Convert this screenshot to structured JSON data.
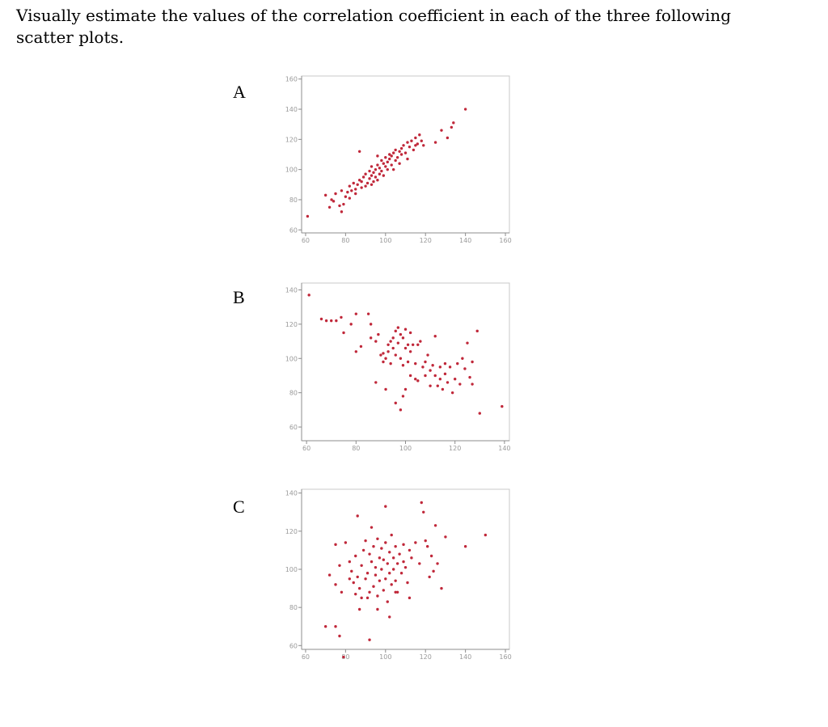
{
  "question": "Visually estimate the values of the correlation coefficient in each of the three following scatter plots.",
  "plot_color": "#c0283a",
  "chart_data": [
    {
      "label": "A",
      "type": "scatter",
      "xlim": [
        58,
        162
      ],
      "ylim": [
        58,
        162
      ],
      "xticks": [
        60,
        80,
        100,
        120,
        140,
        160
      ],
      "yticks": [
        60,
        80,
        100,
        120,
        140,
        160
      ],
      "points": [
        [
          61,
          69
        ],
        [
          70,
          83
        ],
        [
          72,
          75
        ],
        [
          73,
          80
        ],
        [
          74,
          79
        ],
        [
          75,
          84
        ],
        [
          77,
          76
        ],
        [
          78,
          72
        ],
        [
          79,
          77
        ],
        [
          80,
          82
        ],
        [
          81,
          85
        ],
        [
          82,
          81
        ],
        [
          82,
          89
        ],
        [
          83,
          86
        ],
        [
          84,
          91
        ],
        [
          85,
          87
        ],
        [
          86,
          90
        ],
        [
          87,
          93
        ],
        [
          88,
          88
        ],
        [
          88,
          92
        ],
        [
          89,
          95
        ],
        [
          90,
          89
        ],
        [
          90,
          97
        ],
        [
          91,
          91
        ],
        [
          92,
          94
        ],
        [
          92,
          99
        ],
        [
          93,
          96
        ],
        [
          93,
          102
        ],
        [
          94,
          92
        ],
        [
          94,
          98
        ],
        [
          95,
          95
        ],
        [
          95,
          100
        ],
        [
          96,
          103
        ],
        [
          96,
          93
        ],
        [
          97,
          97
        ],
        [
          97,
          101
        ],
        [
          98,
          99
        ],
        [
          98,
          106
        ],
        [
          99,
          104
        ],
        [
          99,
          96
        ],
        [
          100,
          102
        ],
        [
          100,
          108
        ],
        [
          101,
          100
        ],
        [
          101,
          105
        ],
        [
          102,
          107
        ],
        [
          102,
          110
        ],
        [
          103,
          103
        ],
        [
          103,
          109
        ],
        [
          104,
          111
        ],
        [
          105,
          106
        ],
        [
          105,
          113
        ],
        [
          106,
          108
        ],
        [
          107,
          112
        ],
        [
          107,
          104
        ],
        [
          108,
          114
        ],
        [
          108,
          110
        ],
        [
          109,
          116
        ],
        [
          110,
          111
        ],
        [
          111,
          118
        ],
        [
          111,
          107
        ],
        [
          112,
          115
        ],
        [
          113,
          119
        ],
        [
          114,
          113
        ],
        [
          115,
          121
        ],
        [
          116,
          117
        ],
        [
          117,
          123
        ],
        [
          118,
          119
        ],
        [
          119,
          116
        ],
        [
          125,
          118
        ],
        [
          128,
          126
        ],
        [
          131,
          121
        ],
        [
          133,
          128
        ],
        [
          134,
          131
        ],
        [
          140,
          140
        ],
        [
          87,
          112
        ],
        [
          93,
          90
        ],
        [
          85,
          84
        ],
        [
          78,
          86
        ],
        [
          96,
          109
        ],
        [
          104,
          100
        ],
        [
          115,
          116
        ]
      ]
    },
    {
      "label": "B",
      "type": "scatter",
      "xlim": [
        58,
        142
      ],
      "ylim": [
        52,
        144
      ],
      "xticks": [
        60,
        80,
        100,
        120,
        140
      ],
      "yticks": [
        60,
        80,
        100,
        120,
        140
      ],
      "points": [
        [
          61,
          137
        ],
        [
          66,
          123
        ],
        [
          68,
          122
        ],
        [
          70,
          122
        ],
        [
          72,
          122
        ],
        [
          74,
          124
        ],
        [
          75,
          115
        ],
        [
          78,
          120
        ],
        [
          80,
          126
        ],
        [
          85,
          126
        ],
        [
          86,
          120
        ],
        [
          80,
          104
        ],
        [
          82,
          107
        ],
        [
          86,
          112
        ],
        [
          88,
          110
        ],
        [
          89,
          114
        ],
        [
          90,
          102
        ],
        [
          91,
          98
        ],
        [
          91,
          103
        ],
        [
          92,
          100
        ],
        [
          93,
          104
        ],
        [
          93,
          108
        ],
        [
          94,
          110
        ],
        [
          94,
          97
        ],
        [
          95,
          112
        ],
        [
          95,
          106
        ],
        [
          96,
          102
        ],
        [
          96,
          116
        ],
        [
          97,
          118
        ],
        [
          97,
          109
        ],
        [
          98,
          114
        ],
        [
          98,
          100
        ],
        [
          99,
          96
        ],
        [
          99,
          112
        ],
        [
          100,
          106
        ],
        [
          100,
          117
        ],
        [
          101,
          108
        ],
        [
          101,
          98
        ],
        [
          102,
          115
        ],
        [
          102,
          104
        ],
        [
          103,
          108
        ],
        [
          104,
          97
        ],
        [
          104,
          88
        ],
        [
          105,
          108
        ],
        [
          106,
          110
        ],
        [
          107,
          95
        ],
        [
          108,
          90
        ],
        [
          108,
          98
        ],
        [
          109,
          102
        ],
        [
          110,
          93
        ],
        [
          110,
          84
        ],
        [
          111,
          96
        ],
        [
          112,
          90
        ],
        [
          113,
          84
        ],
        [
          114,
          95
        ],
        [
          114,
          88
        ],
        [
          115,
          82
        ],
        [
          116,
          91
        ],
        [
          117,
          86
        ],
        [
          118,
          95
        ],
        [
          119,
          80
        ],
        [
          120,
          88
        ],
        [
          121,
          97
        ],
        [
          122,
          85
        ],
        [
          123,
          100
        ],
        [
          124,
          94
        ],
        [
          125,
          109
        ],
        [
          126,
          89
        ],
        [
          127,
          85
        ],
        [
          127,
          98
        ],
        [
          129,
          116
        ],
        [
          130,
          68
        ],
        [
          88,
          86
        ],
        [
          92,
          82
        ],
        [
          99,
          78
        ],
        [
          100,
          82
        ],
        [
          102,
          90
        ],
        [
          105,
          87
        ],
        [
          96,
          74
        ],
        [
          98,
          70
        ],
        [
          112,
          113
        ],
        [
          116,
          97
        ],
        [
          139,
          72
        ]
      ]
    },
    {
      "label": "C",
      "type": "scatter",
      "xlim": [
        58,
        162
      ],
      "ylim": [
        58,
        142
      ],
      "xticks": [
        60,
        80,
        100,
        120,
        140,
        160
      ],
      "yticks": [
        60,
        80,
        100,
        120,
        140
      ],
      "points": [
        [
          70,
          70
        ],
        [
          75,
          70
        ],
        [
          72,
          97
        ],
        [
          75,
          92
        ],
        [
          77,
          102
        ],
        [
          78,
          88
        ],
        [
          75,
          113
        ],
        [
          80,
          114
        ],
        [
          82,
          95
        ],
        [
          82,
          104
        ],
        [
          83,
          99
        ],
        [
          84,
          93
        ],
        [
          85,
          87
        ],
        [
          85,
          107
        ],
        [
          86,
          96
        ],
        [
          87,
          90
        ],
        [
          87,
          79
        ],
        [
          88,
          85
        ],
        [
          88,
          102
        ],
        [
          89,
          110
        ],
        [
          90,
          95
        ],
        [
          90,
          115
        ],
        [
          91,
          98
        ],
        [
          92,
          88
        ],
        [
          92,
          108
        ],
        [
          93,
          104
        ],
        [
          93,
          122
        ],
        [
          94,
          91
        ],
        [
          94,
          112
        ],
        [
          95,
          101
        ],
        [
          95,
          97
        ],
        [
          96,
          116
        ],
        [
          96,
          86
        ],
        [
          97,
          106
        ],
        [
          97,
          94
        ],
        [
          98,
          111
        ],
        [
          98,
          100
        ],
        [
          99,
          89
        ],
        [
          99,
          105
        ],
        [
          100,
          114
        ],
        [
          100,
          95
        ],
        [
          101,
          103
        ],
        [
          101,
          83
        ],
        [
          102,
          109
        ],
        [
          102,
          98
        ],
        [
          103,
          92
        ],
        [
          103,
          118
        ],
        [
          104,
          106
        ],
        [
          104,
          100
        ],
        [
          105,
          112
        ],
        [
          105,
          94
        ],
        [
          106,
          103
        ],
        [
          106,
          88
        ],
        [
          107,
          108
        ],
        [
          108,
          98
        ],
        [
          109,
          113
        ],
        [
          109,
          104
        ],
        [
          110,
          101
        ],
        [
          111,
          93
        ],
        [
          112,
          110
        ],
        [
          112,
          85
        ],
        [
          113,
          106
        ],
        [
          115,
          114
        ],
        [
          117,
          103
        ],
        [
          120,
          115
        ],
        [
          121,
          112
        ],
        [
          122,
          96
        ],
        [
          123,
          107
        ],
        [
          124,
          99
        ],
        [
          126,
          103
        ],
        [
          130,
          117
        ],
        [
          118,
          135
        ],
        [
          119,
          130
        ],
        [
          125,
          123
        ],
        [
          128,
          90
        ],
        [
          140,
          112
        ],
        [
          150,
          118
        ],
        [
          77,
          65
        ],
        [
          79,
          54
        ],
        [
          92,
          63
        ],
        [
          86,
          128
        ],
        [
          100,
          133
        ],
        [
          102,
          75
        ],
        [
          96,
          79
        ],
        [
          91,
          85
        ],
        [
          105,
          88
        ]
      ]
    }
  ]
}
